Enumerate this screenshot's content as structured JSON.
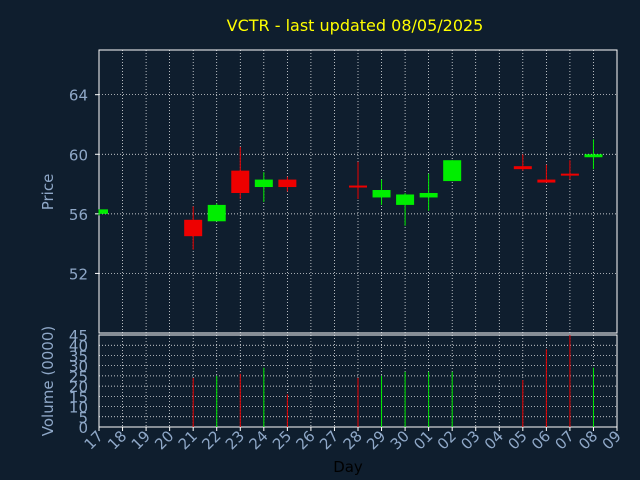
{
  "chart_data": {
    "type": "candlestick",
    "title": "VCTR - last updated 08/05/2025",
    "xlabel": "Day",
    "ylabel_price": "Price",
    "ylabel_volume": "Volume (0000)",
    "x_ticks": [
      "17",
      "18",
      "19",
      "20",
      "21",
      "22",
      "23",
      "24",
      "25",
      "26",
      "27",
      "28",
      "29",
      "30",
      "01",
      "02",
      "03",
      "04",
      "05",
      "06",
      "07",
      "08",
      "09"
    ],
    "price_axis": {
      "ylim": [
        48,
        67
      ],
      "ticks": [
        "52",
        "56",
        "60",
        "64"
      ]
    },
    "volume_axis": {
      "ylim": [
        0,
        45
      ],
      "ticks": [
        "0",
        "5",
        "10",
        "15",
        "20",
        "25",
        "30",
        "35",
        "40",
        "45"
      ]
    },
    "grid": true,
    "colors": {
      "up": "#00ee00",
      "down": "#ee0000",
      "title": "#ffff00",
      "axis_text": "#8fa8c8",
      "grid": "#ffffff",
      "background": "#0f1e2e"
    },
    "candles": [
      {
        "x": "17",
        "open": 56.0,
        "high": 56.3,
        "low": 55.9,
        "close": 56.3,
        "volume": 0
      },
      {
        "x": "21",
        "open": 55.6,
        "high": 56.5,
        "low": 53.6,
        "close": 54.5,
        "volume": 24
      },
      {
        "x": "22",
        "open": 55.5,
        "high": 56.7,
        "low": 55.5,
        "close": 56.6,
        "volume": 25
      },
      {
        "x": "23",
        "open": 58.9,
        "high": 60.5,
        "low": 57.0,
        "close": 57.4,
        "volume": 26
      },
      {
        "x": "24",
        "open": 57.8,
        "high": 58.8,
        "low": 56.8,
        "close": 58.3,
        "volume": 29
      },
      {
        "x": "25",
        "open": 58.3,
        "high": 58.5,
        "low": 57.5,
        "close": 57.8,
        "volume": 16
      },
      {
        "x": "28",
        "open": 57.9,
        "high": 59.5,
        "low": 57.0,
        "close": 57.8,
        "volume": 24
      },
      {
        "x": "29",
        "open": 57.1,
        "high": 58.3,
        "low": 56.6,
        "close": 57.6,
        "volume": 25
      },
      {
        "x": "30",
        "open": 56.6,
        "high": 57.4,
        "low": 55.2,
        "close": 57.3,
        "volume": 27
      },
      {
        "x": "01",
        "open": 57.1,
        "high": 58.7,
        "low": 56.2,
        "close": 57.4,
        "volume": 27
      },
      {
        "x": "02",
        "open": 58.2,
        "high": 59.6,
        "low": 58.2,
        "close": 59.6,
        "volume": 27
      },
      {
        "x": "05",
        "open": 59.2,
        "high": 60.0,
        "low": 58.9,
        "close": 59.0,
        "volume": 23
      },
      {
        "x": "06",
        "open": 58.3,
        "high": 59.3,
        "low": 58.1,
        "close": 58.1,
        "volume": 38
      },
      {
        "x": "07",
        "open": 58.7,
        "high": 59.6,
        "low": 58.3,
        "close": 58.6,
        "volume": 45
      },
      {
        "x": "08",
        "open": 59.8,
        "high": 61.0,
        "low": 59.0,
        "close": 60.0,
        "volume": 29
      }
    ]
  }
}
